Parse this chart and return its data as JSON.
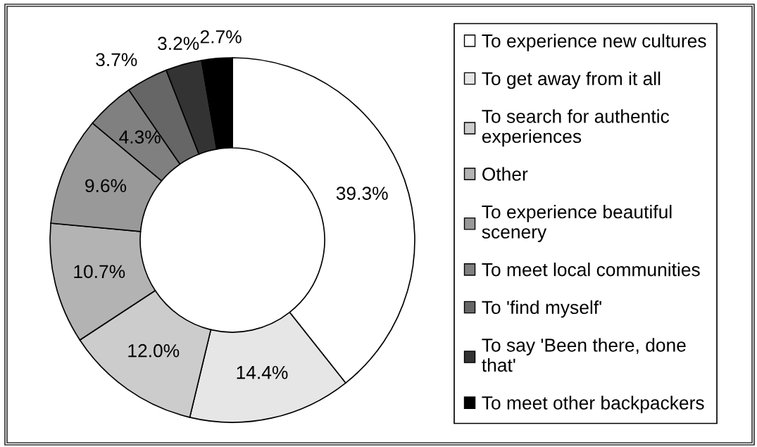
{
  "chart_data": {
    "type": "donut",
    "categories": [
      "To experience new cultures",
      "To get away from it all",
      "To search for authentic experiences",
      "Other",
      "To experience beautiful scenery",
      "To meet local communities",
      "To 'find myself'",
      "To say 'Been there, done that'",
      "To meet other backpackers"
    ],
    "values": [
      39.3,
      14.4,
      12.0,
      10.7,
      9.6,
      4.3,
      3.7,
      3.2,
      2.7
    ],
    "colors": [
      "#ffffff",
      "#e6e6e6",
      "#cccccc",
      "#b3b3b3",
      "#999999",
      "#808080",
      "#666666",
      "#333333",
      "#000000"
    ],
    "value_labels": [
      "39.3%",
      "14.4%",
      "12.0%",
      "10.7%",
      "9.6%",
      "4.3%",
      "3.7%",
      "3.2%",
      "2.7%"
    ],
    "legend": "right"
  }
}
